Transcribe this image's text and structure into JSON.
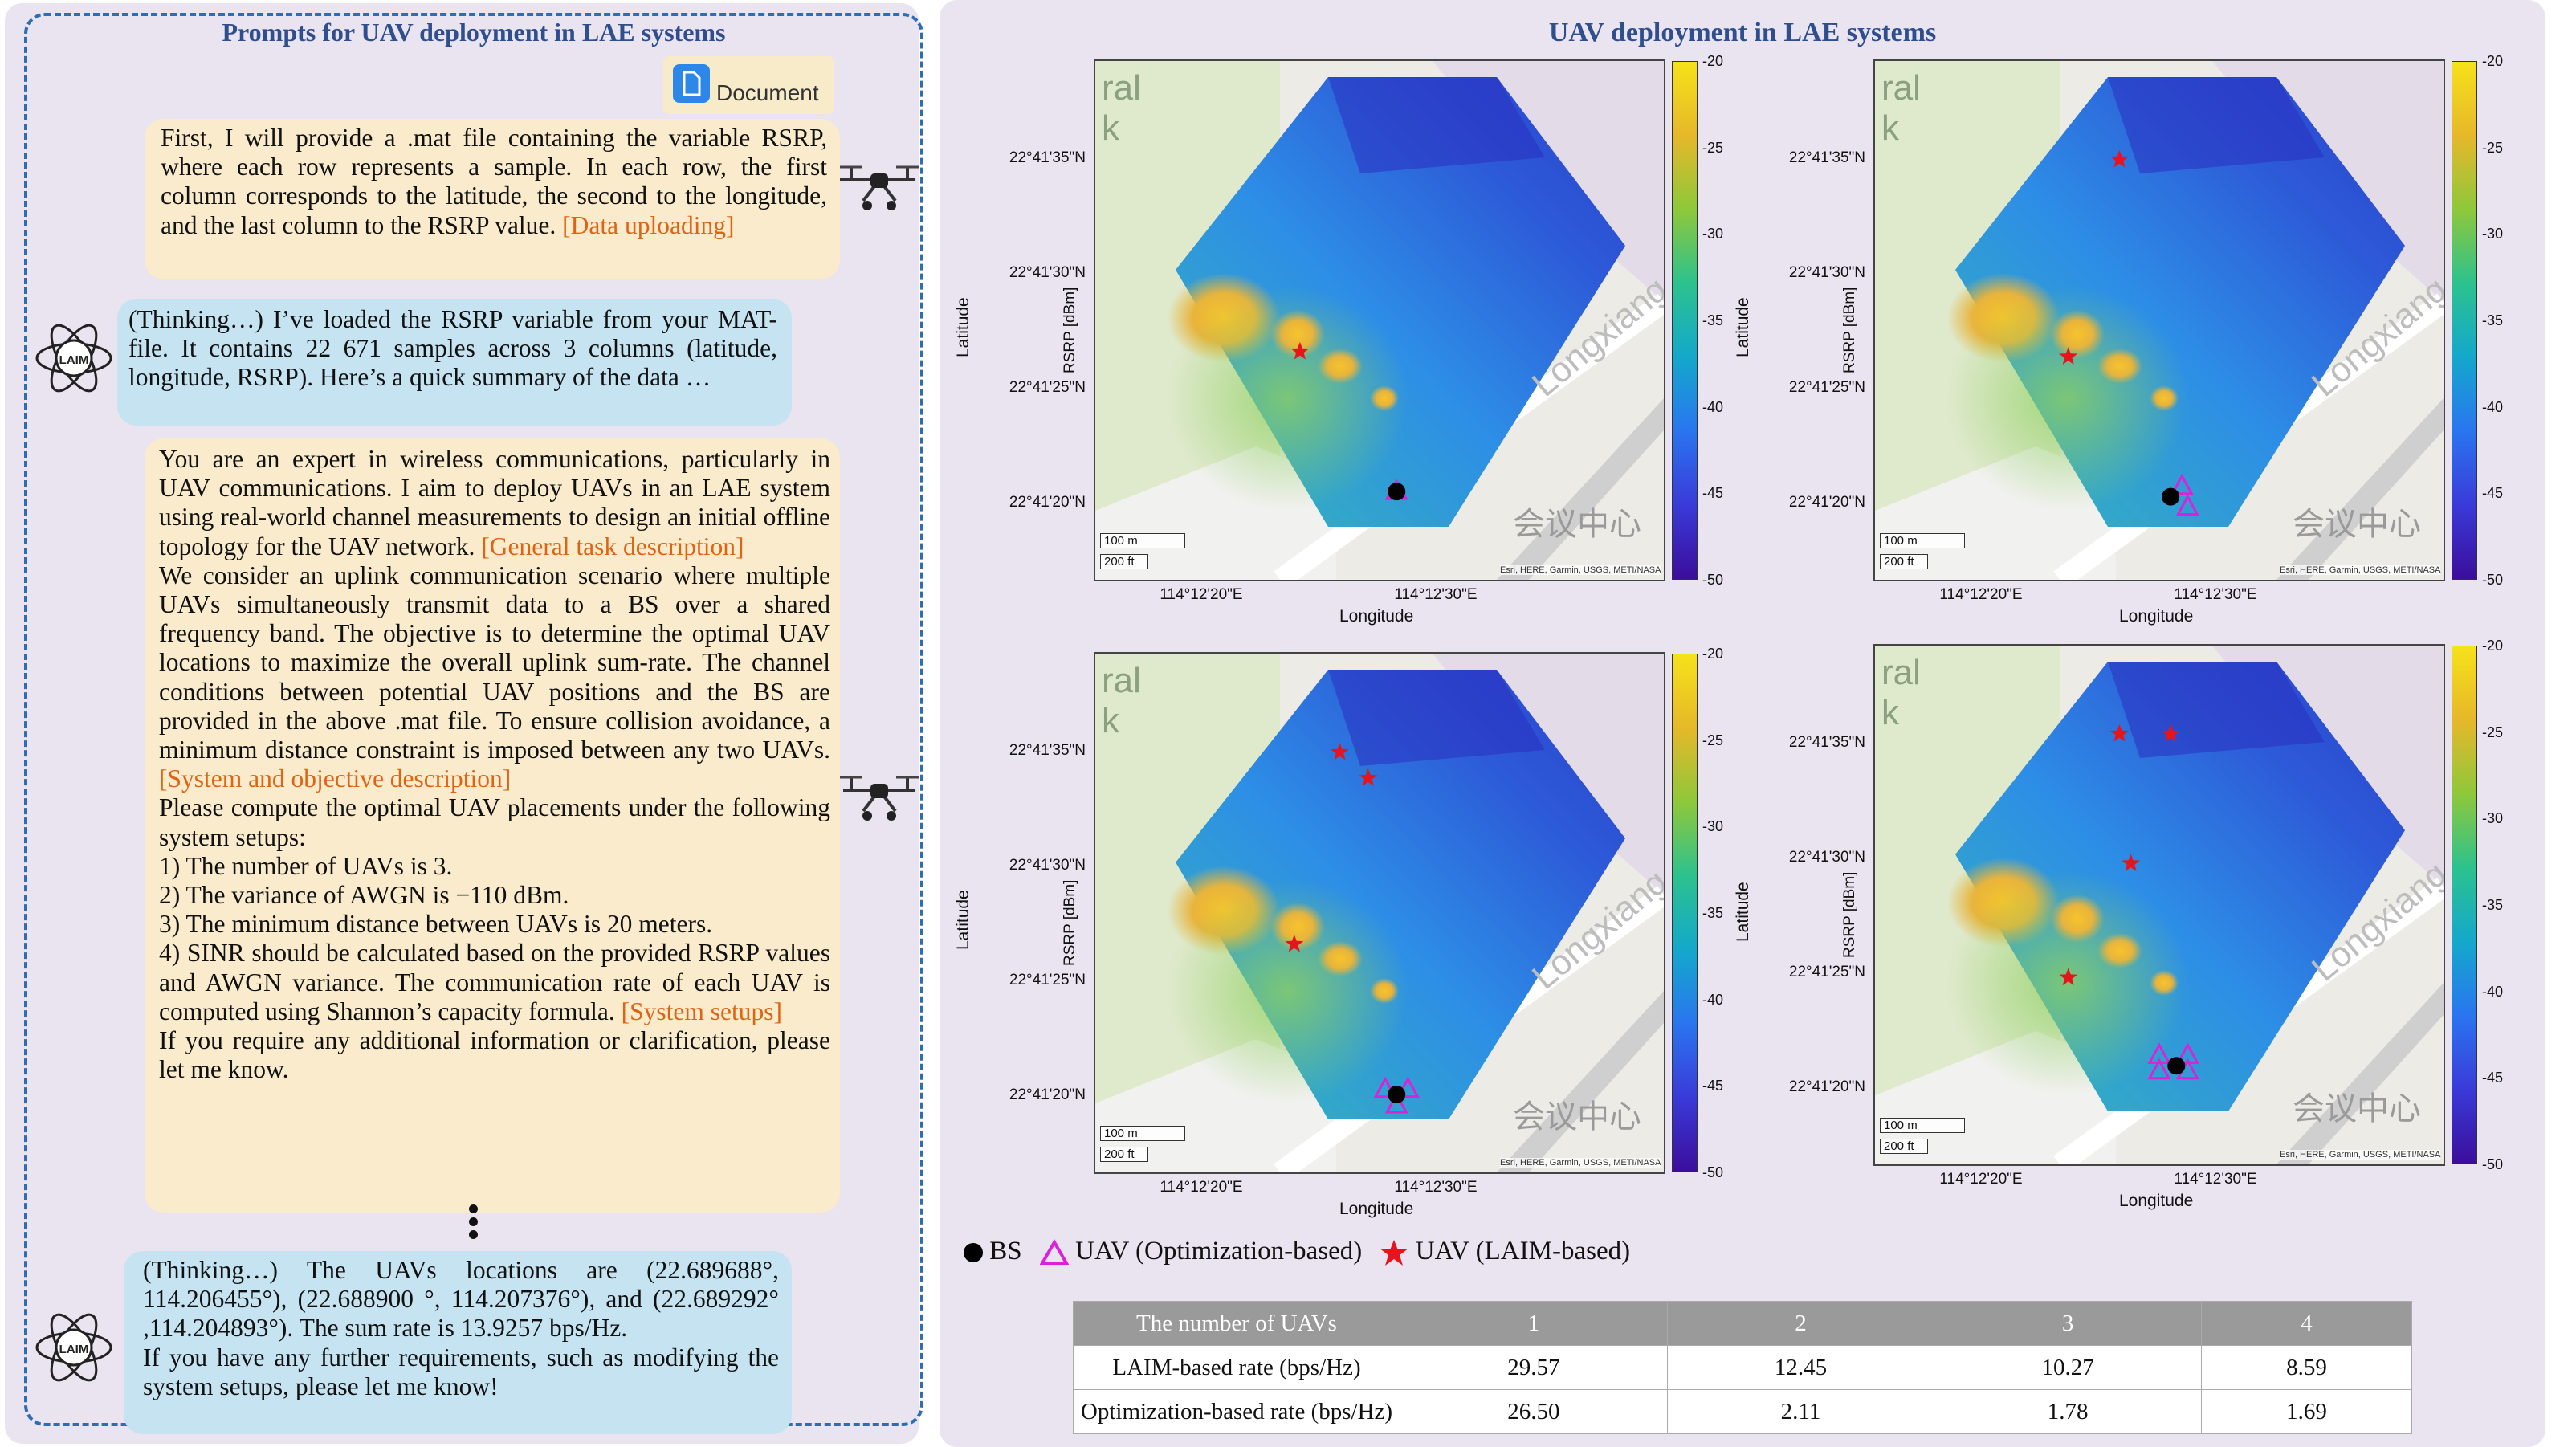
{
  "left": {
    "title": "Prompts for UAV deployment in LAE systems",
    "doc_label": "Document",
    "icons": {
      "document": "document-icon",
      "drone": "drone-icon",
      "laim": "laim-logo-icon"
    },
    "msg1": {
      "text": "First, I will provide a .mat file containing the variable RSRP, where each row represents a sample. In each row, the first column corresponds to the latitude, the second to the longitude, and the last column to the RSRP value. ",
      "tag": "[Data uploading]"
    },
    "reply1": "(Thinking…) I’ve loaded the RSRP variable from your MAT-file. It contains 22 671 samples across 3 columns (latitude, longitude, RSRP). Here’s a quick summary of the data …",
    "msg2": {
      "p1": "You are an expert in wireless communications, particularly in  UAV communications. I aim to deploy UAVs in an LAE system using real-world channel measurements to design an initial offline topology for the UAV network. ",
      "tag1": "[General task description]",
      "p2": "We consider an uplink communication scenario where multiple UAVs simultaneously transmit data to a BS over a shared frequency band. The objective is to determine the optimal UAV locations to maximize the overall uplink sum-rate. The channel conditions between potential UAV positions and the BS are provided in the above .mat file. To ensure collision avoidance, a minimum distance constraint is imposed between any two UAVs. ",
      "tag2": "[System and objective description]",
      "p3": "Please compute the optimal UAV placements under the following system setups:",
      "l1": "1) The number of UAVs is 3.",
      "l2": "2) The variance of AWGN is −110 dBm.",
      "l3": "3) The minimum distance between UAVs is 20 meters.",
      "l4": "4) SINR should be calculated based on the provided RSRP values and AWGN variance. The communication rate of each UAV is computed using Shannon’s capacity formula. ",
      "tag3": "[System setups]",
      "p4": "If you require any additional information or clarification, please let me know."
    },
    "reply2": {
      "p1": "(Thinking…) The UAVs locations are (22.689688°, 114.206455°), (22.688900 °, 114.207376°), and (22.689292° ,114.204893°). The sum rate is 13.9257 bps/Hz.",
      "p2": "If you have any further requirements, such as modifying the system setups, please let me know!"
    }
  },
  "right": {
    "title": "UAV deployment in LAE systems",
    "lat_ticks": [
      "22°41'35\"N",
      "22°41'30\"N",
      "22°41'25\"N",
      "22°41'20\"N"
    ],
    "lon_ticks": [
      "114°12'20\"E",
      "114°12'30\"E"
    ],
    "xlabel": "Longitude",
    "ylabel": "Latitude",
    "cbar_label": "RSRP [dBm]",
    "cbar_ticks": [
      "-20",
      "-25",
      "-30",
      "-35",
      "-40",
      "-45",
      "-50"
    ],
    "credit": "Esri, HERE, Garmin, USGS, METI/NASA",
    "scale_m": "100 m",
    "scale_ft": "200 ft",
    "map_text": {
      "ral": "ral",
      "k": "k",
      "road": "Longxiang",
      "building": "会议中心"
    },
    "legend": {
      "bs": "BS",
      "opt": "UAV (Optimization-based)",
      "laim": "UAV (LAIM-based)"
    },
    "colors": {
      "accent": "#2f4e8e",
      "laim_star": "#e8141c",
      "opt_triangle": "#d824d8",
      "tag": "#e06314"
    }
  },
  "table": {
    "headers": [
      "The number of UAVs",
      "1",
      "2",
      "3",
      "4"
    ],
    "rows": [
      [
        "LAIM-based rate (bps/Hz)",
        "29.57",
        "12.45",
        "10.27",
        "8.59"
      ],
      [
        "Optimization-based rate (bps/Hz)",
        "26.50",
        "2.11",
        "1.78",
        "1.69"
      ]
    ]
  }
}
